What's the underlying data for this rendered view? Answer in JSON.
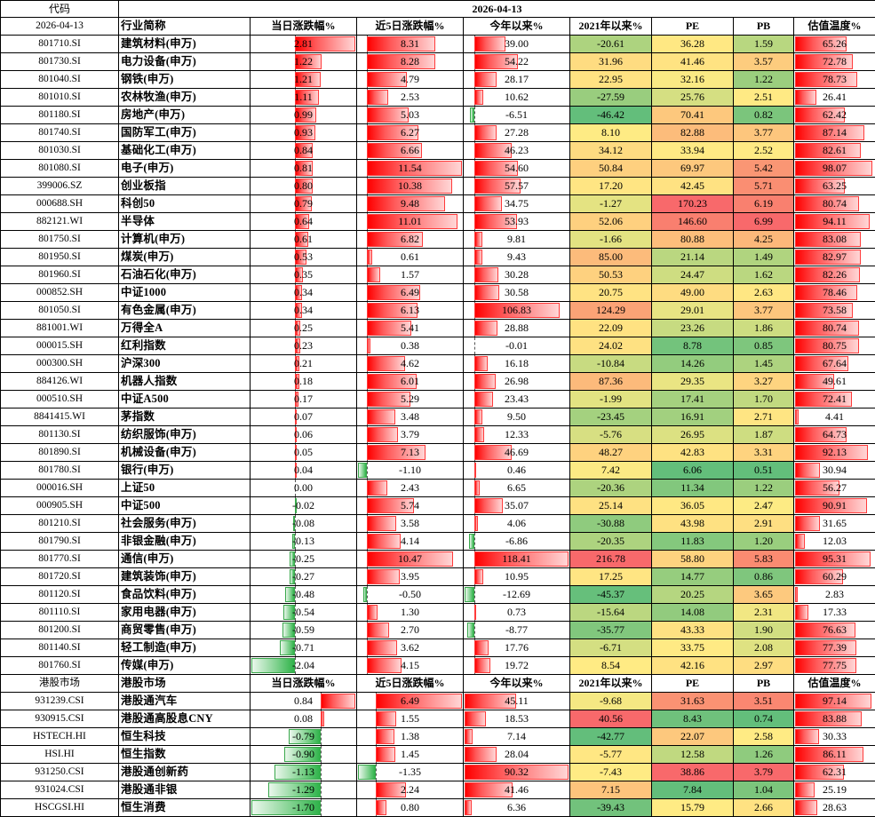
{
  "header": {
    "code_label": "代码",
    "date": "2026-04-13"
  },
  "columns1": [
    "行业简称",
    "当日涨跌幅%",
    "近5日涨跌幅%",
    "今年以来%",
    "2021年以来%",
    "PE",
    "PB",
    "估值温度%"
  ],
  "columns2": [
    "港股市场",
    "当日涨跌幅%",
    "近5日涨跌幅%",
    "今年以来%",
    "2021年以来%",
    "PE",
    "PB",
    "估值温度%"
  ],
  "section1_code_label": "2026-04-13",
  "section2_code_label": "港股市场",
  "rows1": [
    [
      "801710.SI",
      "建筑材料(申万)",
      "2.81",
      "8.31",
      "39.00",
      "-20.61",
      "36.28",
      "1.59",
      "65.26"
    ],
    [
      "801730.SI",
      "电力设备(申万)",
      "1.22",
      "8.28",
      "54.22",
      "31.96",
      "41.46",
      "3.57",
      "72.78"
    ],
    [
      "801040.SI",
      "钢铁(申万)",
      "1.21",
      "4.79",
      "28.17",
      "22.95",
      "32.16",
      "1.22",
      "78.73"
    ],
    [
      "801010.SI",
      "农林牧渔(申万)",
      "1.11",
      "2.53",
      "10.62",
      "-27.59",
      "25.76",
      "2.51",
      "26.41"
    ],
    [
      "801180.SI",
      "房地产(申万)",
      "0.99",
      "5.03",
      "-6.51",
      "-46.42",
      "70.41",
      "0.82",
      "62.42"
    ],
    [
      "801740.SI",
      "国防军工(申万)",
      "0.93",
      "6.27",
      "27.28",
      "8.10",
      "82.88",
      "3.77",
      "87.14"
    ],
    [
      "801030.SI",
      "基础化工(申万)",
      "0.84",
      "6.66",
      "46.23",
      "34.12",
      "33.94",
      "2.52",
      "82.61"
    ],
    [
      "801080.SI",
      "电子(申万)",
      "0.81",
      "11.54",
      "54.60",
      "50.84",
      "69.97",
      "5.42",
      "98.07"
    ],
    [
      "399006.SZ",
      "创业板指",
      "0.80",
      "10.38",
      "57.57",
      "17.20",
      "42.45",
      "5.71",
      "63.25"
    ],
    [
      "000688.SH",
      "科创50",
      "0.79",
      "9.48",
      "34.75",
      "-1.27",
      "170.23",
      "6.19",
      "80.74"
    ],
    [
      "882121.WI",
      "半导体",
      "0.64",
      "11.01",
      "53.93",
      "52.06",
      "146.60",
      "6.99",
      "94.11"
    ],
    [
      "801750.SI",
      "计算机(申万)",
      "0.61",
      "6.82",
      "9.81",
      "-1.66",
      "80.88",
      "4.25",
      "83.08"
    ],
    [
      "801950.SI",
      "煤炭(申万)",
      "0.53",
      "0.61",
      "9.43",
      "85.00",
      "21.14",
      "1.49",
      "82.97"
    ],
    [
      "801960.SI",
      "石油石化(申万)",
      "0.35",
      "1.57",
      "30.28",
      "50.53",
      "24.47",
      "1.62",
      "82.26"
    ],
    [
      "000852.SH",
      "中证1000",
      "0.34",
      "6.49",
      "30.58",
      "20.75",
      "49.00",
      "2.63",
      "78.46"
    ],
    [
      "801050.SI",
      "有色金属(申万)",
      "0.34",
      "6.13",
      "106.83",
      "124.29",
      "29.01",
      "3.77",
      "73.58"
    ],
    [
      "881001.WI",
      "万得全A",
      "0.25",
      "5.41",
      "28.88",
      "22.09",
      "23.26",
      "1.86",
      "80.74"
    ],
    [
      "000015.SH",
      "红利指数",
      "0.23",
      "0.38",
      "-0.01",
      "24.02",
      "8.78",
      "0.85",
      "80.75"
    ],
    [
      "000300.SH",
      "沪深300",
      "0.21",
      "4.62",
      "16.18",
      "-10.84",
      "14.26",
      "1.45",
      "67.64"
    ],
    [
      "884126.WI",
      "机器人指数",
      "0.18",
      "6.01",
      "26.98",
      "87.36",
      "29.35",
      "3.27",
      "49.61"
    ],
    [
      "000510.SH",
      "中证A500",
      "0.17",
      "5.29",
      "23.43",
      "-1.99",
      "17.41",
      "1.70",
      "72.41"
    ],
    [
      "8841415.WI",
      "茅指数",
      "0.07",
      "3.48",
      "9.50",
      "-23.45",
      "16.91",
      "2.71",
      "4.41"
    ],
    [
      "801130.SI",
      "纺织服饰(申万)",
      "0.06",
      "3.79",
      "12.33",
      "-5.76",
      "26.95",
      "1.87",
      "64.73"
    ],
    [
      "801890.SI",
      "机械设备(申万)",
      "0.05",
      "7.13",
      "46.69",
      "48.27",
      "42.83",
      "3.31",
      "92.13"
    ],
    [
      "801780.SI",
      "银行(申万)",
      "0.04",
      "-1.10",
      "0.46",
      "7.42",
      "6.06",
      "0.51",
      "30.94"
    ],
    [
      "000016.SH",
      "上证50",
      "0.00",
      "2.43",
      "6.65",
      "-20.36",
      "11.34",
      "1.22",
      "56.27"
    ],
    [
      "000905.SH",
      "中证500",
      "-0.02",
      "5.74",
      "35.07",
      "25.14",
      "36.05",
      "2.47",
      "90.91"
    ],
    [
      "801210.SI",
      "社会服务(申万)",
      "-0.08",
      "3.58",
      "4.06",
      "-30.88",
      "43.98",
      "2.91",
      "31.65"
    ],
    [
      "801790.SI",
      "非银金融(申万)",
      "-0.13",
      "4.14",
      "-6.86",
      "-20.35",
      "11.83",
      "1.20",
      "12.03"
    ],
    [
      "801770.SI",
      "通信(申万)",
      "-0.25",
      "10.47",
      "118.41",
      "216.78",
      "58.80",
      "5.83",
      "95.31"
    ],
    [
      "801720.SI",
      "建筑装饰(申万)",
      "-0.27",
      "3.95",
      "10.95",
      "17.25",
      "14.77",
      "0.86",
      "60.29"
    ],
    [
      "801120.SI",
      "食品饮料(申万)",
      "-0.48",
      "-0.50",
      "-12.69",
      "-45.37",
      "20.25",
      "3.65",
      "2.83"
    ],
    [
      "801110.SI",
      "家用电器(申万)",
      "-0.54",
      "1.30",
      "0.73",
      "-15.64",
      "14.08",
      "2.31",
      "17.33"
    ],
    [
      "801200.SI",
      "商贸零售(申万)",
      "-0.59",
      "2.70",
      "-8.77",
      "-35.77",
      "43.33",
      "1.90",
      "76.63"
    ],
    [
      "801140.SI",
      "轻工制造(申万)",
      "-0.71",
      "3.62",
      "17.76",
      "-6.71",
      "33.75",
      "2.08",
      "77.39"
    ],
    [
      "801760.SI",
      "传媒(申万)",
      "-2.04",
      "4.15",
      "19.72",
      "8.54",
      "42.16",
      "2.97",
      "77.75"
    ]
  ],
  "rows2": [
    [
      "931239.CSI",
      "港股通汽车",
      "0.84",
      "6.49",
      "45.11",
      "-9.68",
      "31.63",
      "3.51",
      "97.14"
    ],
    [
      "930915.CSI",
      "港股通高股息CNY",
      "0.08",
      "1.55",
      "18.53",
      "40.56",
      "8.43",
      "0.74",
      "83.88"
    ],
    [
      "HSTECH.HI",
      "恒生科技",
      "-0.79",
      "1.38",
      "7.14",
      "-42.77",
      "22.07",
      "2.58",
      "30.33"
    ],
    [
      "HSI.HI",
      "恒生指数",
      "-0.90",
      "1.45",
      "28.04",
      "-5.77",
      "12.58",
      "1.26",
      "86.11"
    ],
    [
      "931250.CSI",
      "港股通创新药",
      "-1.13",
      "-1.35",
      "90.32",
      "-7.43",
      "38.86",
      "3.79",
      "62.31"
    ],
    [
      "931024.CSI",
      "港股通非银",
      "-1.29",
      "2.24",
      "41.46",
      "7.15",
      "7.84",
      "1.04",
      "25.19"
    ],
    [
      "HSCGSI.HI",
      "恒生消费",
      "-1.70",
      "0.80",
      "6.36",
      "-39.43",
      "15.79",
      "2.66",
      "28.63"
    ]
  ],
  "colors": {
    "bar_pos": "#ff0000",
    "bar_neg": "#2fb34a",
    "heat_low": "#63be7b",
    "heat_mid": "#ffeb84",
    "heat_high": "#f8696b"
  }
}
